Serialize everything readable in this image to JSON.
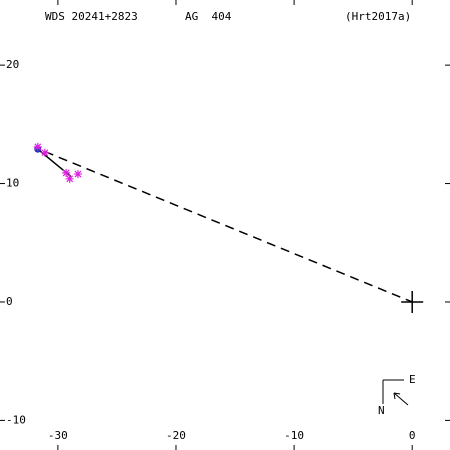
{
  "chart_data": {
    "type": "scatter",
    "title": "WDS 20241+2823",
    "subtitle": "AG  404",
    "reference": "(Hrt2017a)",
    "xlim": [
      -34.9,
      3.2
    ],
    "ylim": [
      -12.5,
      25.5
    ],
    "xticks": [
      -30,
      -20,
      -10,
      0
    ],
    "yticks": [
      -10,
      0,
      10,
      20
    ],
    "grid": false,
    "points": {
      "color": "#e020e0",
      "x": [
        -31.7,
        -31.1,
        -29.3,
        -29.0,
        -28.3
      ],
      "y": [
        13.1,
        12.6,
        10.9,
        10.4,
        10.8
      ]
    },
    "first_point": {
      "color": "#2030c0",
      "x": -31.7,
      "y": 12.9
    },
    "solid_line": {
      "x": [
        -31.7,
        -28.9
      ],
      "y": [
        12.9,
        10.6
      ]
    },
    "dashed_line": {
      "x": [
        -31.1,
        0
      ],
      "y": [
        12.7,
        0
      ]
    },
    "primary": {
      "x": 0,
      "y": 0
    },
    "compass": {
      "east": "E",
      "north": "N"
    }
  }
}
